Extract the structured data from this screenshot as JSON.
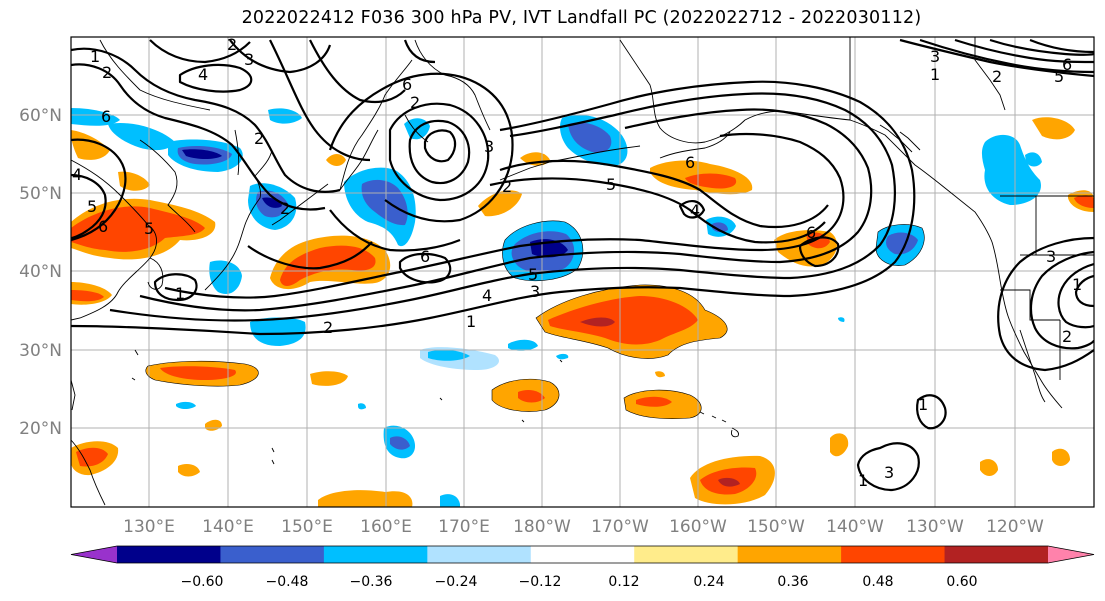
{
  "title": "2022022412 F036 300 hPa PV, IVT Landfall PC (2022022712 - 2022030112)",
  "lon_ticks": [
    "130°E",
    "140°E",
    "150°E",
    "160°E",
    "170°E",
    "180°W",
    "170°W",
    "160°W",
    "150°W",
    "140°W",
    "130°W",
    "120°W"
  ],
  "lat_ticks": [
    "60°N",
    "50°N",
    "40°N",
    "30°N",
    "20°N"
  ],
  "colorbar": {
    "colors": [
      "#9932cc",
      "#00008b",
      "#3a5fcd",
      "#00bfff",
      "#b0e2ff",
      "#ffffff",
      "#ffec8b",
      "#ffa500",
      "#ff4500",
      "#b22222",
      "#ff82ab"
    ],
    "labels": [
      "−0.60",
      "−0.48",
      "−0.36",
      "−0.24",
      "−0.12",
      "0.12",
      "0.24",
      "0.36",
      "0.48",
      "0.60"
    ]
  },
  "contour_labels": [
    "2",
    "1",
    "2",
    "4",
    "3",
    "6",
    "6",
    "2",
    "2",
    "3",
    "5",
    "4",
    "5",
    "6",
    "2",
    "2",
    "6",
    "1",
    "2",
    "1",
    "3",
    "4",
    "5",
    "5",
    "4",
    "6",
    "6",
    "3",
    "1",
    "5",
    "6",
    "3",
    "2",
    "1",
    "2",
    "1",
    "3",
    "1"
  ]
}
